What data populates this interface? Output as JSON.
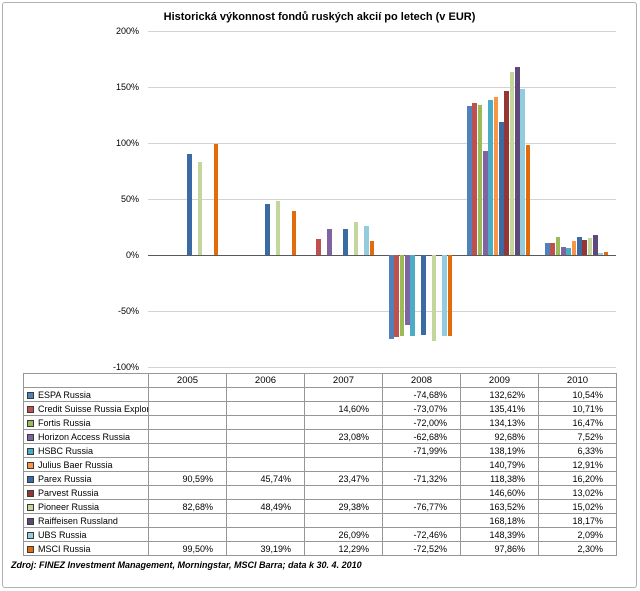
{
  "meta": {
    "source_note": "Zdroj: FINEZ Investment Management, Morningstar, MSCI Barra; data k 30. 4. 2010"
  },
  "chart_data": {
    "type": "bar",
    "title": "Historická výkonnost fondů ruských akcií po letech (v EUR)",
    "categories": [
      "2005",
      "2006",
      "2007",
      "2008",
      "2009",
      "2010"
    ],
    "ylim": [
      -100,
      200
    ],
    "yticks": [
      200,
      150,
      100,
      50,
      0,
      -50,
      -100
    ],
    "ytick_labels": [
      "200%",
      "150%",
      "100%",
      "50%",
      "0%",
      "-50%",
      "-100%"
    ],
    "grid": true,
    "legend_position": "table-left",
    "value_suffix": "%",
    "series": [
      {
        "name": "ESPA Russia",
        "color": "#4F81BD",
        "values": [
          null,
          null,
          null,
          -74.68,
          132.62,
          10.54
        ],
        "display": [
          "",
          "",
          "",
          "-74,68%",
          "132,62%",
          "10,54%"
        ]
      },
      {
        "name": "Credit Suisse Russia Explorer",
        "color": "#C0504D",
        "values": [
          null,
          null,
          14.6,
          -73.07,
          135.41,
          10.71
        ],
        "display": [
          "",
          "",
          "14,60%",
          "-73,07%",
          "135,41%",
          "10,71%"
        ]
      },
      {
        "name": "Fortis Russia",
        "color": "#9BBB59",
        "values": [
          null,
          null,
          null,
          -72.0,
          134.13,
          16.47
        ],
        "display": [
          "",
          "",
          "",
          "-72,00%",
          "134,13%",
          "16,47%"
        ]
      },
      {
        "name": "Horizon Access Russia",
        "color": "#8064A2",
        "values": [
          null,
          null,
          23.08,
          -62.68,
          92.68,
          7.52
        ],
        "display": [
          "",
          "",
          "23,08%",
          "-62,68%",
          "92,68%",
          "7,52%"
        ]
      },
      {
        "name": "HSBC Russia",
        "color": "#4BACC6",
        "values": [
          null,
          null,
          null,
          -71.99,
          138.19,
          6.33
        ],
        "display": [
          "",
          "",
          "",
          "-71,99%",
          "138,19%",
          "6,33%"
        ]
      },
      {
        "name": "Julius Baer Russia",
        "color": "#F79646",
        "values": [
          null,
          null,
          null,
          null,
          140.79,
          12.91
        ],
        "display": [
          "",
          "",
          "",
          "",
          "140,79%",
          "12,91%"
        ]
      },
      {
        "name": "Parex Russia",
        "color": "#3A6BA5",
        "values": [
          90.59,
          45.74,
          23.47,
          -71.32,
          118.38,
          16.2
        ],
        "display": [
          "90,59%",
          "45,74%",
          "23,47%",
          "-71,32%",
          "118,38%",
          "16,20%"
        ]
      },
      {
        "name": "Parvest Russia",
        "color": "#943634",
        "values": [
          null,
          null,
          null,
          null,
          146.6,
          13.02
        ],
        "display": [
          "",
          "",
          "",
          "",
          "146,60%",
          "13,02%"
        ]
      },
      {
        "name": "Pioneer Russia",
        "color": "#C3D69B",
        "values": [
          82.68,
          48.49,
          29.38,
          -76.77,
          163.52,
          15.02
        ],
        "display": [
          "82,68%",
          "48,49%",
          "29,38%",
          "-76,77%",
          "163,52%",
          "15,02%"
        ]
      },
      {
        "name": "Raiffeisen Russland",
        "color": "#5F497A",
        "values": [
          null,
          null,
          null,
          null,
          168.18,
          18.17
        ],
        "display": [
          "",
          "",
          "",
          "",
          "168,18%",
          "18,17%"
        ]
      },
      {
        "name": "UBS Russia",
        "color": "#93CDDD",
        "values": [
          null,
          null,
          26.09,
          -72.46,
          148.39,
          2.09
        ],
        "display": [
          "",
          "",
          "26,09%",
          "-72,46%",
          "148,39%",
          "2,09%"
        ]
      },
      {
        "name": "MSCI Russia",
        "color": "#E36C0A",
        "values": [
          99.5,
          39.19,
          12.29,
          -72.52,
          97.86,
          2.3
        ],
        "display": [
          "99,50%",
          "39,19%",
          "12,29%",
          "-72,52%",
          "97,86%",
          "2,30%"
        ]
      }
    ]
  }
}
